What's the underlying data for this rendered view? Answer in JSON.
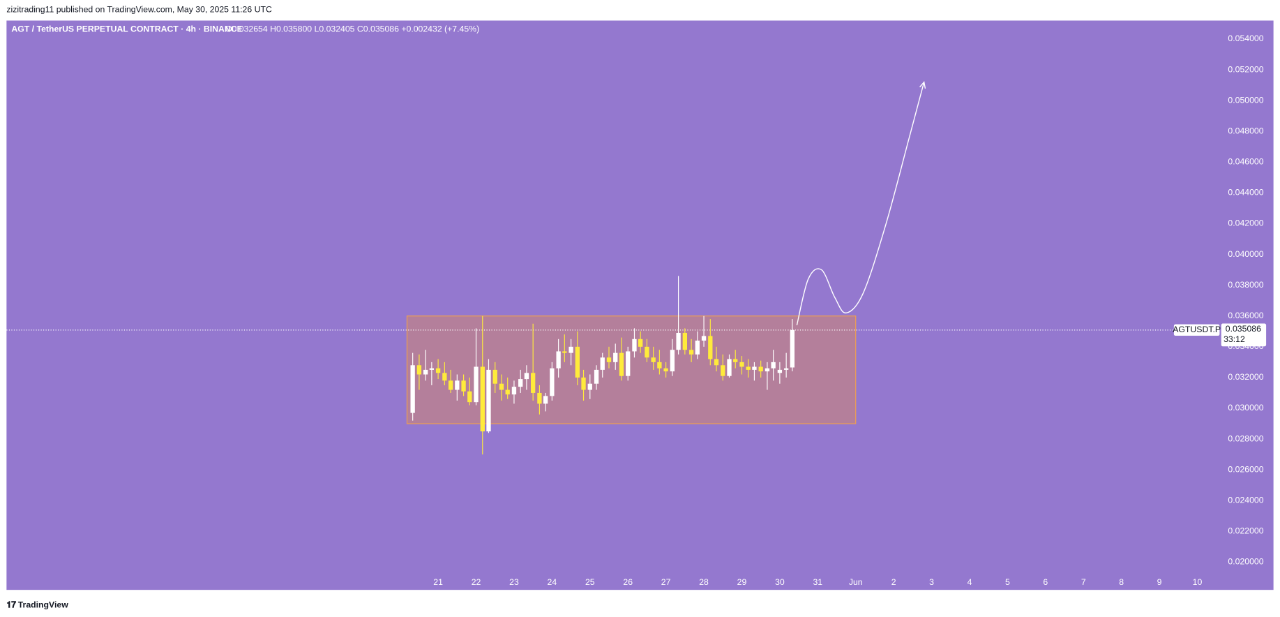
{
  "chart_data": {
    "type": "candlestick",
    "header": "zizitrading11 published on TradingView.com, May 30, 2025 11:26 UTC",
    "title": "AGT / TetherUS PERPETUAL CONTRACT · 4h · BINANCE",
    "ohlc_text": "O0.032654 H0.035800 L0.032405 C0.035086 +0.002432 (+7.45%)",
    "footer": "TradingView",
    "background": "#9478cf",
    "up_color": "#ffffff",
    "down_color": "#ffeb3b",
    "grid": false,
    "x": [
      20.33,
      20.5,
      20.67,
      20.83,
      21,
      21.17,
      21.33,
      21.5,
      21.67,
      21.83,
      22,
      22.17,
      22.33,
      22.5,
      22.67,
      22.83,
      23,
      23.17,
      23.33,
      23.5,
      23.67,
      23.83,
      24,
      24.17,
      24.33,
      24.5,
      24.67,
      24.83,
      25,
      25.17,
      25.33,
      25.5,
      25.67,
      25.83,
      26,
      26.17,
      26.33,
      26.5,
      26.67,
      26.83,
      27,
      27.17,
      27.33,
      27.5,
      27.67,
      27.83,
      28,
      28.17,
      28.33,
      28.5,
      28.67,
      28.83,
      29,
      29.17,
      29.33,
      29.5,
      29.67,
      29.83,
      30,
      30.17,
      30.33
    ],
    "open": [
      0.0297,
      0.0328,
      0.0322,
      0.0325,
      0.0326,
      0.0323,
      0.0318,
      0.0312,
      0.0318,
      0.0311,
      0.0304,
      0.0327,
      0.0285,
      0.0325,
      0.0316,
      0.0312,
      0.0309,
      0.0314,
      0.0319,
      0.0323,
      0.031,
      0.0303,
      0.0308,
      0.0326,
      0.0337,
      0.0336,
      0.034,
      0.032,
      0.0312,
      0.0316,
      0.0325,
      0.0333,
      0.033,
      0.0336,
      0.0321,
      0.0337,
      0.0345,
      0.034,
      0.0333,
      0.033,
      0.0326,
      0.0324,
      0.0338,
      0.0349,
      0.0338,
      0.0335,
      0.0344,
      0.0347,
      0.0332,
      0.0328,
      0.0321,
      0.0332,
      0.033,
      0.0327,
      0.0325,
      0.0327,
      0.0324,
      0.0326,
      0.0323,
      0.0325,
      0.032654
    ],
    "high": [
      0.0336,
      0.0335,
      0.0338,
      0.033,
      0.0332,
      0.033,
      0.0325,
      0.0322,
      0.0322,
      0.032,
      0.0352,
      0.036,
      0.0332,
      0.033,
      0.0322,
      0.032,
      0.0318,
      0.0325,
      0.0328,
      0.0355,
      0.0315,
      0.031,
      0.033,
      0.0345,
      0.0348,
      0.0345,
      0.035,
      0.0325,
      0.0322,
      0.0328,
      0.0336,
      0.034,
      0.0342,
      0.0346,
      0.034,
      0.0352,
      0.035,
      0.0345,
      0.034,
      0.0338,
      0.033,
      0.0345,
      0.0386,
      0.0352,
      0.0345,
      0.035,
      0.036,
      0.0358,
      0.034,
      0.0335,
      0.0335,
      0.0338,
      0.0334,
      0.0332,
      0.033,
      0.0331,
      0.033,
      0.0338,
      0.033,
      0.0336,
      0.0358
    ],
    "low": [
      0.0292,
      0.0312,
      0.0318,
      0.0315,
      0.0319,
      0.0315,
      0.031,
      0.0305,
      0.0308,
      0.0302,
      0.0302,
      0.027,
      0.0284,
      0.031,
      0.0305,
      0.0306,
      0.0303,
      0.031,
      0.0312,
      0.0305,
      0.0296,
      0.0298,
      0.0305,
      0.032,
      0.033,
      0.0328,
      0.0315,
      0.0305,
      0.0306,
      0.0312,
      0.032,
      0.0326,
      0.0325,
      0.0318,
      0.0318,
      0.0333,
      0.0336,
      0.033,
      0.0325,
      0.0322,
      0.032,
      0.0321,
      0.0335,
      0.0335,
      0.033,
      0.0332,
      0.034,
      0.0328,
      0.0324,
      0.0318,
      0.032,
      0.0326,
      0.0322,
      0.032,
      0.0318,
      0.032,
      0.0312,
      0.0318,
      0.0316,
      0.032,
      0.032405
    ],
    "close": [
      0.0328,
      0.0322,
      0.0325,
      0.0326,
      0.0323,
      0.0318,
      0.0312,
      0.0318,
      0.0311,
      0.0304,
      0.0327,
      0.0285,
      0.0325,
      0.0316,
      0.0312,
      0.0309,
      0.0314,
      0.0319,
      0.0323,
      0.031,
      0.0303,
      0.0308,
      0.0326,
      0.0337,
      0.0336,
      0.034,
      0.032,
      0.0312,
      0.0316,
      0.0325,
      0.0333,
      0.033,
      0.0336,
      0.0321,
      0.0337,
      0.0345,
      0.034,
      0.0333,
      0.033,
      0.0326,
      0.0324,
      0.0338,
      0.0349,
      0.0338,
      0.0335,
      0.0344,
      0.0347,
      0.0332,
      0.0328,
      0.0321,
      0.0332,
      0.033,
      0.0327,
      0.0325,
      0.0327,
      0.0324,
      0.0326,
      0.033,
      0.0325,
      0.0326,
      0.035086
    ],
    "xlim": [
      9.63,
      41.5
    ],
    "ylim": [
      0.0191,
      0.0552
    ],
    "xticks": [
      21,
      22,
      23,
      24,
      25,
      26,
      27,
      28,
      29,
      30,
      31,
      {
        "value": 32,
        "label": "Jun"
      },
      {
        "value": 33,
        "label": "2"
      },
      {
        "value": 34,
        "label": "3"
      },
      {
        "value": 35,
        "label": "4"
      },
      {
        "value": 36,
        "label": "5"
      },
      {
        "value": 37,
        "label": "6"
      },
      {
        "value": 38,
        "label": "7"
      },
      {
        "value": 39,
        "label": "8"
      },
      {
        "value": 40,
        "label": "9"
      },
      {
        "value": 41,
        "label": "10"
      }
    ],
    "yticks": [
      {
        "value": 0.02,
        "label": "0.020000"
      },
      {
        "value": 0.022,
        "label": "0.022000"
      },
      {
        "value": 0.024,
        "label": "0.024000"
      },
      {
        "value": 0.026,
        "label": "0.026000"
      },
      {
        "value": 0.028,
        "label": "0.028000"
      },
      {
        "value": 0.03,
        "label": "0.030000"
      },
      {
        "value": 0.032,
        "label": "0.032000"
      },
      {
        "value": 0.034,
        "label": "0.034000"
      },
      {
        "value": 0.036,
        "label": "0.036000"
      },
      {
        "value": 0.038,
        "label": "0.038000"
      },
      {
        "value": 0.04,
        "label": "0.040000"
      },
      {
        "value": 0.042,
        "label": "0.042000"
      },
      {
        "value": 0.044,
        "label": "0.044000"
      },
      {
        "value": 0.046,
        "label": "0.046000"
      },
      {
        "value": 0.048,
        "label": "0.048000"
      },
      {
        "value": 0.05,
        "label": "0.050000"
      },
      {
        "value": 0.052,
        "label": "0.052000"
      },
      {
        "value": 0.054,
        "label": "0.054000"
      }
    ],
    "symbol": "AGTUSDT.P",
    "last_price": {
      "value": 0.035086,
      "label": "0.035086"
    },
    "countdown": "33:12",
    "range_box": {
      "x": [
        20.18,
        32
      ],
      "y": [
        0.029,
        0.036
      ]
    },
    "projection": {
      "x": [
        30.45,
        30.75,
        31.1,
        31.45,
        31.75,
        32.2,
        32.8,
        33.4,
        33.8
      ],
      "y": [
        0.0354,
        0.0384,
        0.039,
        0.0372,
        0.0362,
        0.0375,
        0.042,
        0.0475,
        0.0512
      ]
    }
  }
}
